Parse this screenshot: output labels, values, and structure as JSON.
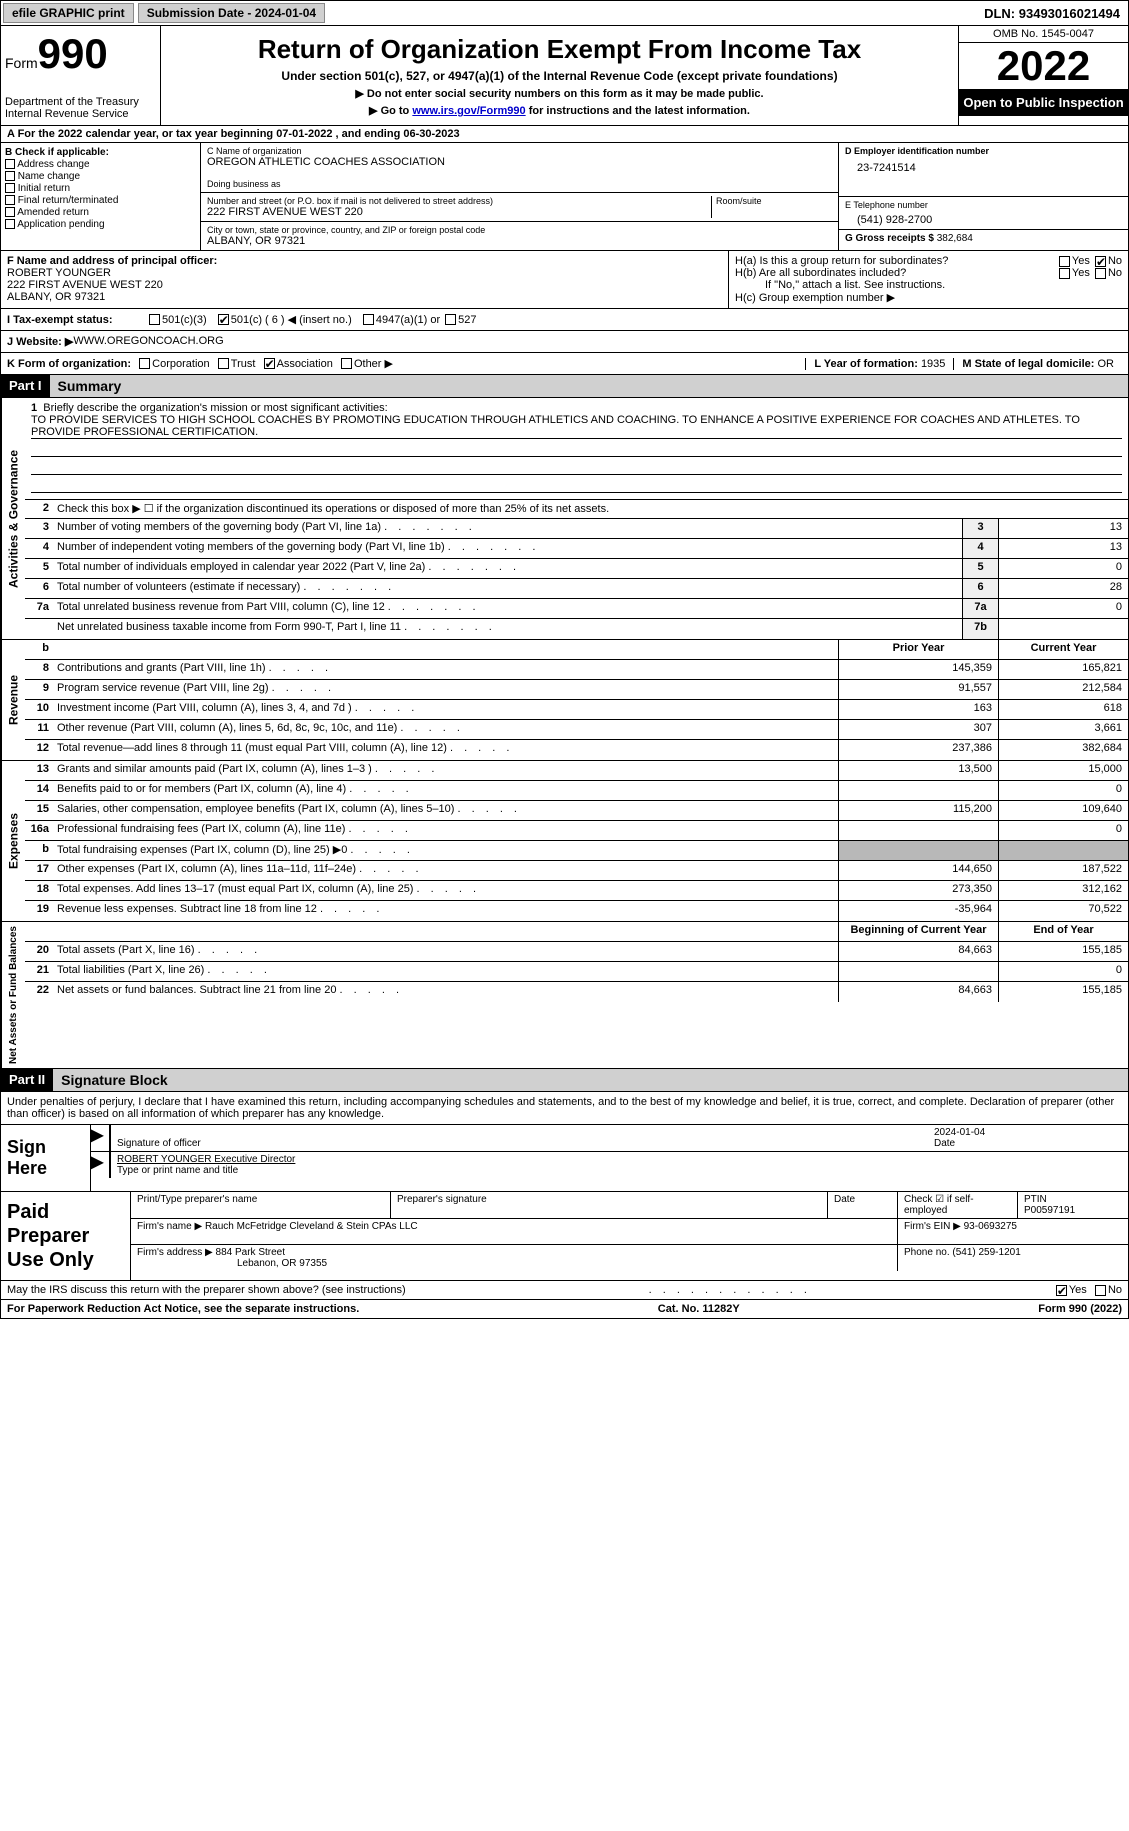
{
  "topbar": {
    "efile": "efile GRAPHIC print",
    "submission_label": "Submission Date - ",
    "submission_date": "2024-01-04",
    "dln_label": "DLN: ",
    "dln": "93493016021494"
  },
  "header": {
    "form_word": "Form",
    "form_num": "990",
    "dept1": "Department of the Treasury",
    "dept2": "Internal Revenue Service",
    "title": "Return of Organization Exempt From Income Tax",
    "subtitle": "Under section 501(c), 527, or 4947(a)(1) of the Internal Revenue Code (except private foundations)",
    "instr1": "▶ Do not enter social security numbers on this form as it may be made public.",
    "instr2_pre": "▶ Go to ",
    "instr2_link": "www.irs.gov/Form990",
    "instr2_post": " for instructions and the latest information.",
    "omb": "OMB No. 1545-0047",
    "year": "2022",
    "open": "Open to Public Inspection"
  },
  "line_a": "A For the 2022 calendar year, or tax year beginning 07-01-2022    , and ending 06-30-2023",
  "col_b": {
    "hdr": "B Check if applicable:",
    "opts": [
      "Address change",
      "Name change",
      "Initial return",
      "Final return/terminated",
      "Amended return",
      "Application pending"
    ]
  },
  "col_c": {
    "name_label": "C Name of organization",
    "name": "OREGON ATHLETIC COACHES ASSOCIATION",
    "dba_label": "Doing business as",
    "dba": "",
    "street_label": "Number and street (or P.O. box if mail is not delivered to street address)",
    "street": "222 FIRST AVENUE WEST 220",
    "room_label": "Room/suite",
    "city_label": "City or town, state or province, country, and ZIP or foreign postal code",
    "city": "ALBANY, OR   97321"
  },
  "col_d": {
    "ein_label": "D Employer identification number",
    "ein": "23-7241514",
    "phone_label": "E Telephone number",
    "phone": "(541) 928-2700",
    "gross_label": "G Gross receipts $ ",
    "gross": "382,684"
  },
  "row_f": {
    "label": "F Name and address of principal officer:",
    "name": "ROBERT YOUNGER",
    "addr1": "222 FIRST AVENUE WEST 220",
    "addr2": "ALBANY, OR  97321",
    "ha": "H(a)  Is this a group return for subordinates?",
    "hb": "H(b)  Are all subordinates included?",
    "hb_note": "If \"No,\" attach a list. See instructions.",
    "hc": "H(c)  Group exemption number ▶",
    "yes": "Yes",
    "no": "No"
  },
  "row_i": {
    "label": "I   Tax-exempt status:",
    "o1": "501(c)(3)",
    "o2": "501(c) ( 6 ) ◀ (insert no.)",
    "o3": "4947(a)(1) or",
    "o4": "527"
  },
  "row_j": {
    "label": "J   Website: ▶",
    "val": "  WWW.OREGONCOACH.ORG"
  },
  "row_k": {
    "label": "K Form of organization:",
    "o1": "Corporation",
    "o2": "Trust",
    "o3": "Association",
    "o4": "Other ▶",
    "l_label": "L Year of formation: ",
    "l_val": "1935",
    "m_label": "M State of legal domicile: ",
    "m_val": "OR"
  },
  "part1": {
    "tag": "Part I",
    "title": "Summary",
    "q1_label": "1",
    "q1_text": "Briefly describe the organization's mission or most significant activities:",
    "mission": "TO PROVIDE SERVICES TO HIGH SCHOOL COACHES BY PROMOTING EDUCATION THROUGH ATHLETICS AND COACHING. TO ENHANCE A POSITIVE EXPERIENCE FOR COACHES AND ATHLETES. TO PROVIDE PROFESSIONAL CERTIFICATION.",
    "q2_text": "Check this box ▶ ☐  if the organization discontinued its operations or disposed of more than 25% of its net assets.",
    "vert_ag": "Activities & Governance",
    "vert_rev": "Revenue",
    "vert_exp": "Expenses",
    "vert_na": "Net Assets or Fund Balances",
    "rows_ag": [
      {
        "n": "3",
        "t": "Number of voting members of the governing body (Part VI, line 1a)",
        "box": "3",
        "v": "13"
      },
      {
        "n": "4",
        "t": "Number of independent voting members of the governing body (Part VI, line 1b)",
        "box": "4",
        "v": "13"
      },
      {
        "n": "5",
        "t": "Total number of individuals employed in calendar year 2022 (Part V, line 2a)",
        "box": "5",
        "v": "0"
      },
      {
        "n": "6",
        "t": "Total number of volunteers (estimate if necessary)",
        "box": "6",
        "v": "28"
      },
      {
        "n": "7a",
        "t": "Total unrelated business revenue from Part VIII, column (C), line 12",
        "box": "7a",
        "v": "0"
      },
      {
        "n": "",
        "t": "Net unrelated business taxable income from Form 990-T, Part I, line 11",
        "box": "7b",
        "v": ""
      }
    ],
    "hdr_prior": "Prior Year",
    "hdr_curr": "Current Year",
    "rows_rev": [
      {
        "n": "8",
        "t": "Contributions and grants (Part VIII, line 1h)",
        "p": "145,359",
        "c": "165,821"
      },
      {
        "n": "9",
        "t": "Program service revenue (Part VIII, line 2g)",
        "p": "91,557",
        "c": "212,584"
      },
      {
        "n": "10",
        "t": "Investment income (Part VIII, column (A), lines 3, 4, and 7d )",
        "p": "163",
        "c": "618"
      },
      {
        "n": "11",
        "t": "Other revenue (Part VIII, column (A), lines 5, 6d, 8c, 9c, 10c, and 11e)",
        "p": "307",
        "c": "3,661"
      },
      {
        "n": "12",
        "t": "Total revenue—add lines 8 through 11 (must equal Part VIII, column (A), line 12)",
        "p": "237,386",
        "c": "382,684"
      }
    ],
    "rows_exp": [
      {
        "n": "13",
        "t": "Grants and similar amounts paid (Part IX, column (A), lines 1–3 )",
        "p": "13,500",
        "c": "15,000"
      },
      {
        "n": "14",
        "t": "Benefits paid to or for members (Part IX, column (A), line 4)",
        "p": "",
        "c": "0"
      },
      {
        "n": "15",
        "t": "Salaries, other compensation, employee benefits (Part IX, column (A), lines 5–10)",
        "p": "115,200",
        "c": "109,640"
      },
      {
        "n": "16a",
        "t": "Professional fundraising fees (Part IX, column (A), line 11e)",
        "p": "",
        "c": "0"
      },
      {
        "n": "b",
        "t": "Total fundraising expenses (Part IX, column (D), line 25) ▶0",
        "p": "GRAY",
        "c": "GRAY"
      },
      {
        "n": "17",
        "t": "Other expenses (Part IX, column (A), lines 11a–11d, 11f–24e)",
        "p": "144,650",
        "c": "187,522"
      },
      {
        "n": "18",
        "t": "Total expenses. Add lines 13–17 (must equal Part IX, column (A), line 25)",
        "p": "273,350",
        "c": "312,162"
      },
      {
        "n": "19",
        "t": "Revenue less expenses. Subtract line 18 from line 12",
        "p": "-35,964",
        "c": "70,522"
      }
    ],
    "hdr_beg": "Beginning of Current Year",
    "hdr_end": "End of Year",
    "rows_na": [
      {
        "n": "20",
        "t": "Total assets (Part X, line 16)",
        "p": "84,663",
        "c": "155,185"
      },
      {
        "n": "21",
        "t": "Total liabilities (Part X, line 26)",
        "p": "",
        "c": "0"
      },
      {
        "n": "22",
        "t": "Net assets or fund balances. Subtract line 21 from line 20",
        "p": "84,663",
        "c": "155,185"
      }
    ]
  },
  "part2": {
    "tag": "Part II",
    "title": "Signature Block",
    "decl": "Under penalties of perjury, I declare that I have examined this return, including accompanying schedules and statements, and to the best of my knowledge and belief, it is true, correct, and complete. Declaration of preparer (other than officer) is based on all information of which preparer has any knowledge.",
    "sign_here": "Sign Here",
    "sig_officer": "Signature of officer",
    "sig_date_label": "Date",
    "sig_date": "2024-01-04",
    "sig_name": "ROBERT YOUNGER  Executive Director",
    "sig_name_label": "Type or print name and title",
    "prep_label": "Paid Preparer Use Only",
    "prep_name_label": "Print/Type preparer's name",
    "prep_sig_label": "Preparer's signature",
    "prep_date_label": "Date",
    "prep_check": "Check ☑ if self-employed",
    "ptin_label": "PTIN",
    "ptin": "P00597191",
    "firm_name_label": "Firm's name    ▶ ",
    "firm_name": "Rauch McFetridge Cleveland & Stein CPAs LLC",
    "firm_ein_label": "Firm's EIN ▶ ",
    "firm_ein": "93-0693275",
    "firm_addr_label": "Firm's address ▶ ",
    "firm_addr1": "884 Park Street",
    "firm_addr2": "Lebanon, OR  97355",
    "firm_phone_label": "Phone no. ",
    "firm_phone": "(541) 259-1201"
  },
  "footer": {
    "discuss": "May the IRS discuss this return with the preparer shown above? (see instructions)",
    "yes": "Yes",
    "no": "No",
    "pra": "For Paperwork Reduction Act Notice, see the separate instructions.",
    "cat": "Cat. No. 11282Y",
    "form": "Form 990 (2022)"
  }
}
